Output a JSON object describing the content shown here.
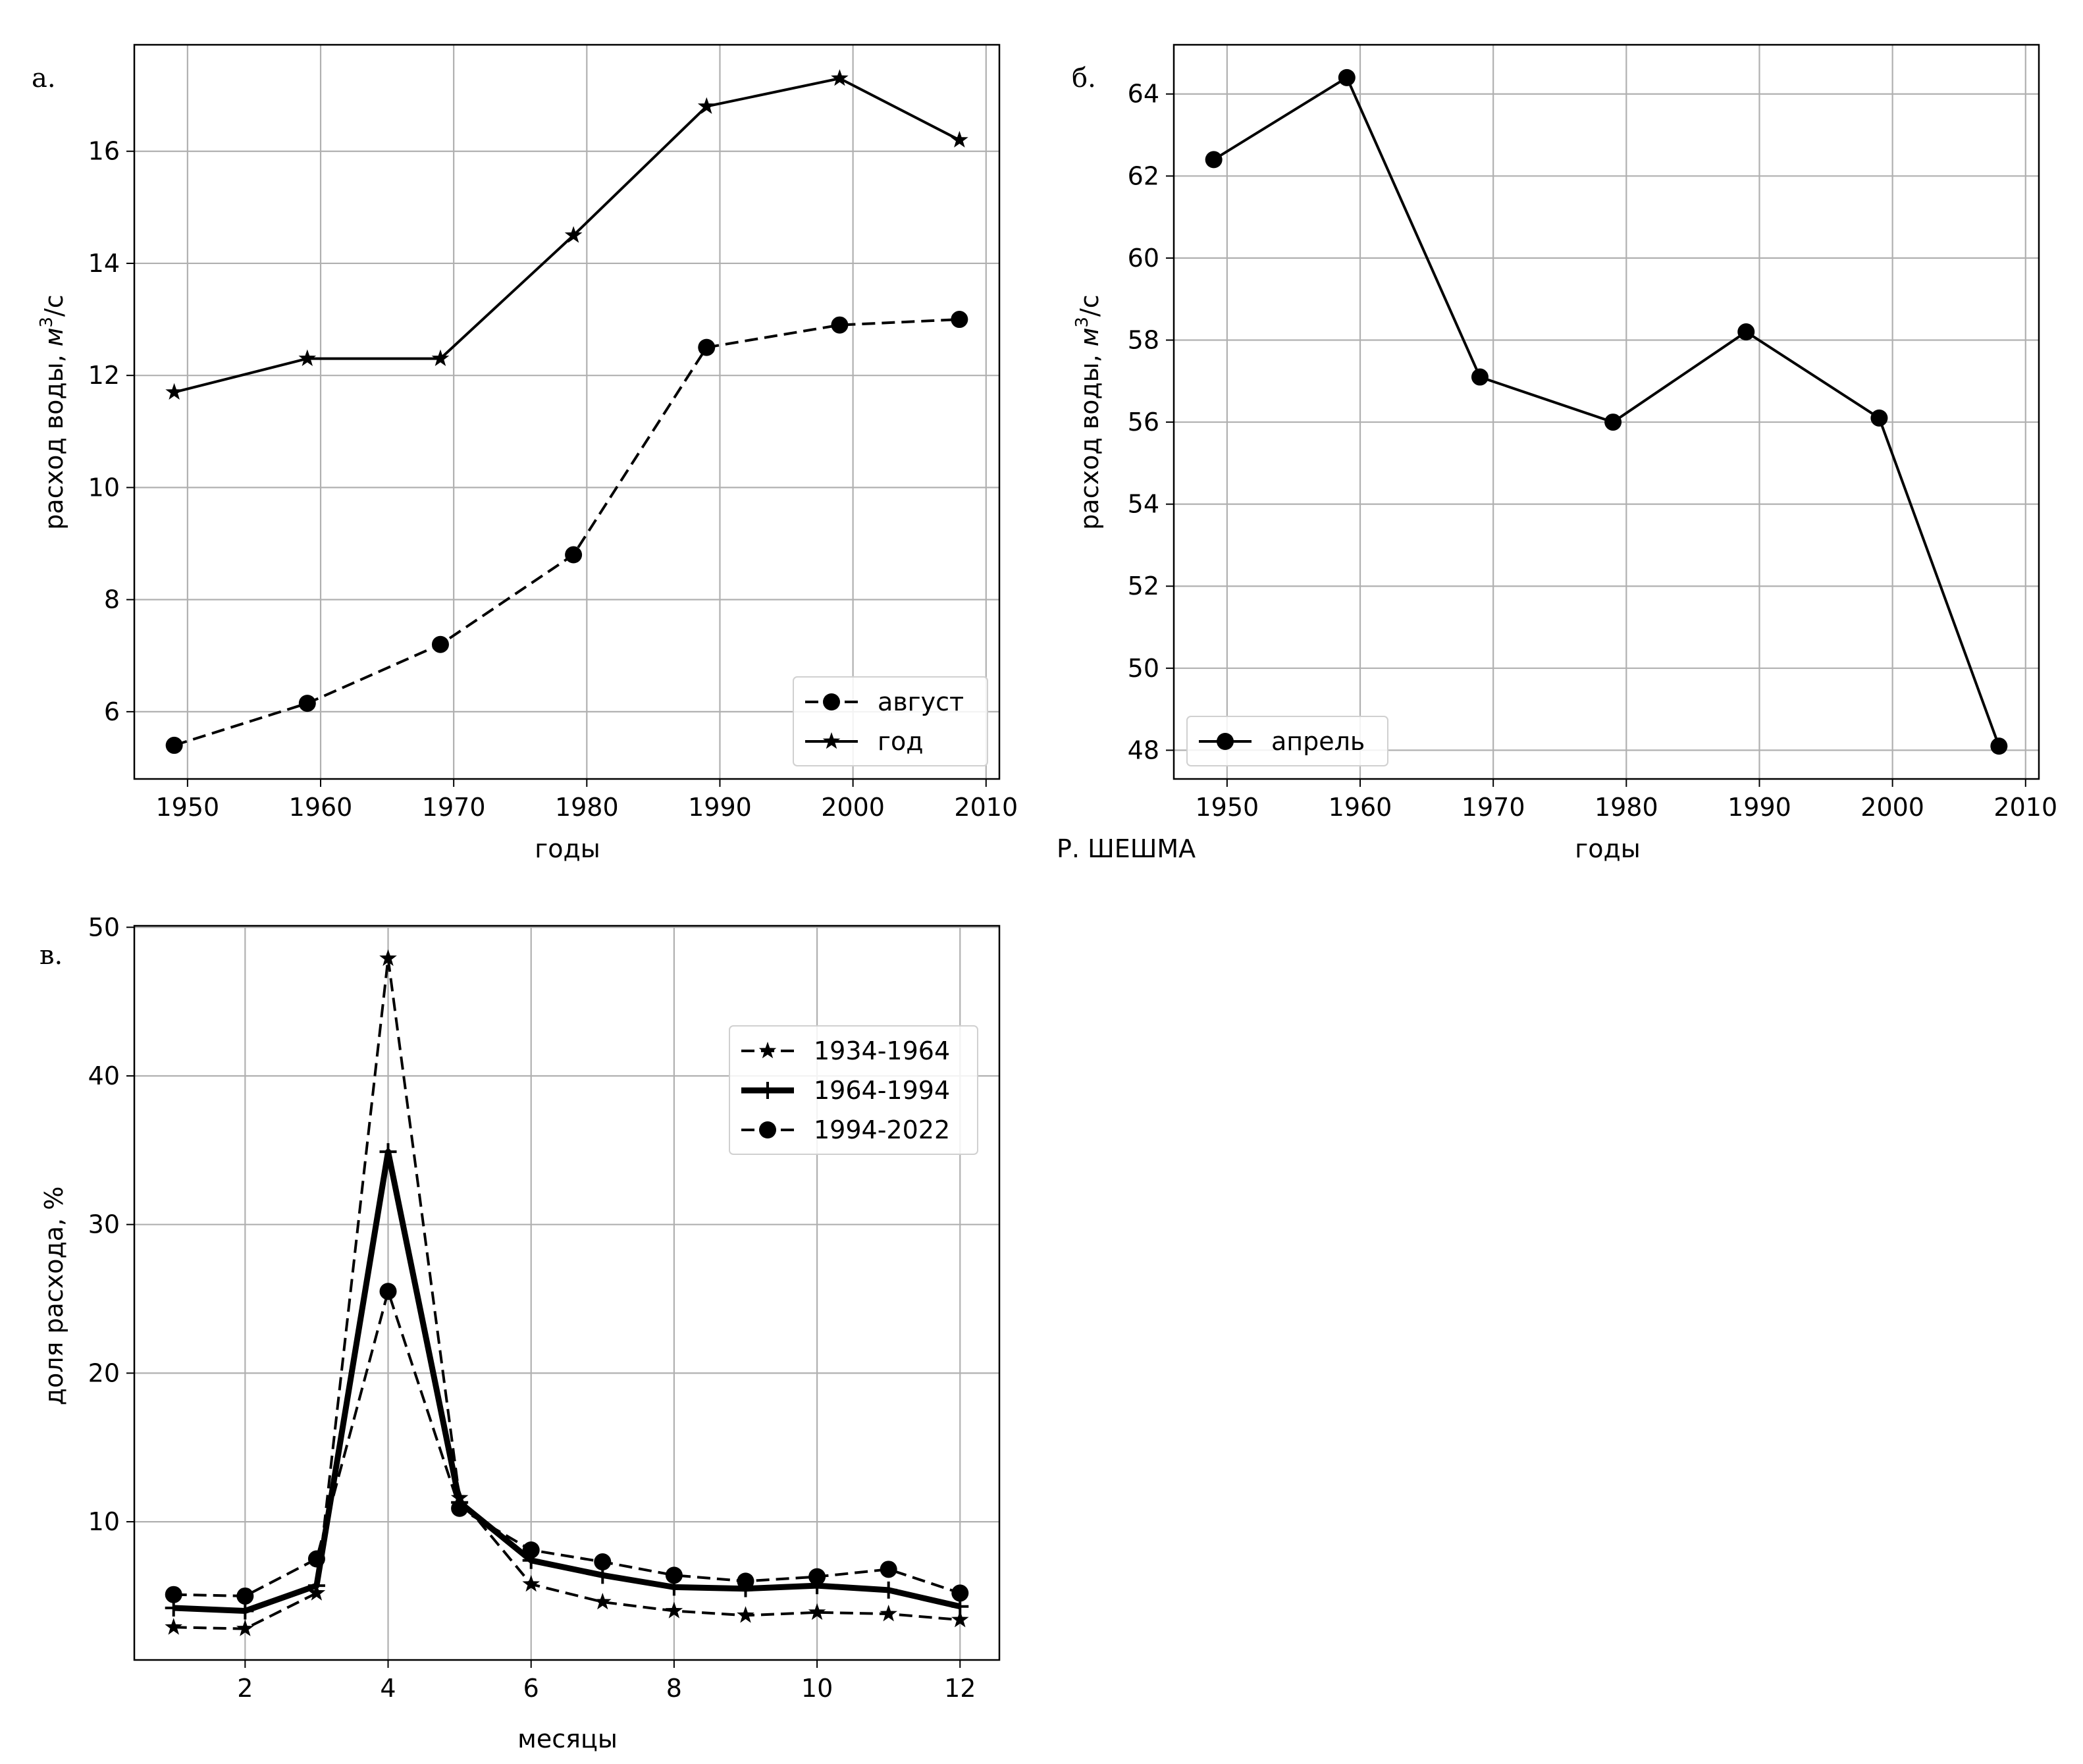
{
  "river_label": "Р. ШЕШМА",
  "chart_data": [
    {
      "id": "a",
      "panel_label": "а.",
      "type": "line",
      "xlabel": "годы",
      "ylabel": "расход воды, м³/с",
      "ylabel_parts": {
        "main": "расход воды, ",
        "unit": "м",
        "sup": "3",
        "tail": "/с"
      },
      "xlim": [
        1946,
        2011
      ],
      "ylim": [
        4.8,
        17.9
      ],
      "xticks": [
        1950,
        1960,
        1970,
        1980,
        1990,
        2000,
        2010
      ],
      "yticks": [
        6,
        8,
        10,
        12,
        14,
        16
      ],
      "grid": true,
      "legend_position": "lower-right",
      "series": [
        {
          "name": "август",
          "style": "dashed",
          "marker": "circle",
          "width": "normal",
          "x": [
            1949,
            1959,
            1969,
            1979,
            1989,
            1999,
            2008
          ],
          "values": [
            5.4,
            6.15,
            7.2,
            8.8,
            12.5,
            12.9,
            13.0
          ]
        },
        {
          "name": "год",
          "style": "solid",
          "marker": "star",
          "width": "normal",
          "x": [
            1949,
            1959,
            1969,
            1979,
            1989,
            1999,
            2008
          ],
          "values": [
            11.7,
            12.3,
            12.3,
            14.5,
            16.8,
            17.3,
            16.2
          ]
        }
      ]
    },
    {
      "id": "b",
      "panel_label": "б.",
      "type": "line",
      "xlabel": "годы",
      "ylabel": "расход воды, м³/с",
      "ylabel_parts": {
        "main": "расход воды, ",
        "unit": "м",
        "sup": "3",
        "tail": "/с"
      },
      "xlim": [
        1946,
        2011
      ],
      "ylim": [
        47.3,
        65.2
      ],
      "xticks": [
        1950,
        1960,
        1970,
        1980,
        1990,
        2000,
        2010
      ],
      "yticks": [
        48,
        50,
        52,
        54,
        56,
        58,
        60,
        62,
        64
      ],
      "grid": true,
      "legend_position": "lower-left",
      "series": [
        {
          "name": "апрель",
          "style": "solid",
          "marker": "circle",
          "width": "normal",
          "x": [
            1949,
            1959,
            1969,
            1979,
            1989,
            1999,
            2008
          ],
          "values": [
            62.4,
            64.4,
            57.1,
            56.0,
            58.2,
            56.1,
            48.1
          ]
        }
      ]
    },
    {
      "id": "c",
      "panel_label": "в.",
      "type": "line",
      "xlabel": "месяцы",
      "ylabel": "доля расхода, %",
      "xlim": [
        0.45,
        12.55
      ],
      "ylim": [
        0.7,
        50.1
      ],
      "xticks": [
        2,
        4,
        6,
        8,
        10,
        12
      ],
      "yticks": [
        10,
        20,
        30,
        40,
        50
      ],
      "grid": true,
      "legend_position": "upper-right",
      "series": [
        {
          "name": "1934-1964",
          "style": "dashed",
          "marker": "star",
          "width": "normal",
          "x": [
            1,
            2,
            3,
            4,
            5,
            6,
            7,
            8,
            9,
            10,
            11,
            12
          ],
          "values": [
            2.9,
            2.8,
            5.2,
            47.9,
            11.6,
            5.8,
            4.6,
            4.0,
            3.7,
            3.9,
            3.8,
            3.4
          ]
        },
        {
          "name": "1964-1994",
          "style": "solid",
          "marker": "plus",
          "width": "thick",
          "x": [
            1,
            2,
            3,
            4,
            5,
            6,
            7,
            8,
            9,
            10,
            11,
            12
          ],
          "values": [
            4.2,
            4.0,
            5.7,
            34.9,
            11.3,
            7.4,
            6.4,
            5.6,
            5.5,
            5.7,
            5.4,
            4.3
          ]
        },
        {
          "name": "1994-2022",
          "style": "dashed",
          "marker": "circle",
          "width": "normal",
          "x": [
            1,
            2,
            3,
            4,
            5,
            6,
            7,
            8,
            9,
            10,
            11,
            12
          ],
          "values": [
            5.1,
            5.0,
            7.5,
            25.5,
            10.9,
            8.1,
            7.3,
            6.4,
            6.0,
            6.3,
            6.8,
            5.2
          ]
        }
      ]
    }
  ]
}
